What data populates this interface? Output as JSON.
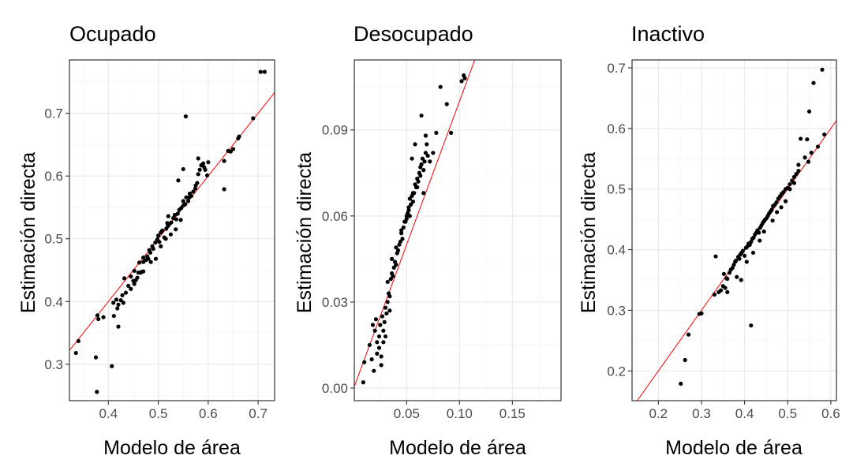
{
  "chart_data": [
    {
      "type": "scatter",
      "title": "Ocupado",
      "xlabel": "Modelo de área",
      "ylabel": "Estimación directa",
      "xlim": [
        0.322,
        0.733
      ],
      "ylim": [
        0.242,
        0.785
      ],
      "xticks": [
        0.4,
        0.5,
        0.6,
        0.7
      ],
      "xtick_labels": [
        "0.4",
        "0.5",
        "0.6",
        "0.7"
      ],
      "yticks": [
        0.3,
        0.4,
        0.5,
        0.6,
        0.7
      ],
      "ytick_labels": [
        "0.3",
        "0.4",
        "0.5",
        "0.6",
        "0.7"
      ],
      "grid": true,
      "reference_line": {
        "slope": 1,
        "intercept": 0,
        "color": "#ff0000"
      },
      "x": [
        0.34,
        0.335,
        0.378,
        0.375,
        0.377,
        0.38,
        0.39,
        0.407,
        0.41,
        0.416,
        0.418,
        0.42,
        0.411,
        0.42,
        0.425,
        0.43,
        0.428,
        0.44,
        0.432,
        0.445,
        0.45,
        0.452,
        0.458,
        0.452,
        0.46,
        0.466,
        0.462,
        0.47,
        0.475,
        0.47,
        0.478,
        0.48,
        0.484,
        0.482,
        0.49,
        0.488,
        0.494,
        0.498,
        0.502,
        0.5,
        0.505,
        0.508,
        0.512,
        0.516,
        0.519,
        0.518,
        0.522,
        0.526,
        0.53,
        0.533,
        0.536,
        0.539,
        0.542,
        0.546,
        0.55,
        0.55,
        0.554,
        0.556,
        0.56,
        0.562,
        0.563,
        0.566,
        0.57,
        0.574,
        0.575,
        0.578,
        0.58,
        0.583,
        0.586,
        0.59,
        0.592,
        0.594,
        0.598,
        0.6,
        0.555,
        0.58,
        0.632,
        0.64,
        0.645,
        0.65,
        0.66,
        0.662,
        0.69,
        0.705,
        0.713,
        0.632,
        0.55,
        0.54,
        0.52,
        0.465,
        0.47,
        0.485,
        0.495,
        0.505,
        0.515,
        0.525,
        0.535,
        0.545,
        0.455,
        0.445,
        0.435
      ],
      "y": [
        0.337,
        0.318,
        0.378,
        0.311,
        0.256,
        0.372,
        0.375,
        0.297,
        0.398,
        0.403,
        0.389,
        0.36,
        0.377,
        0.395,
        0.402,
        0.398,
        0.41,
        0.425,
        0.437,
        0.44,
        0.433,
        0.428,
        0.438,
        0.449,
        0.446,
        0.447,
        0.462,
        0.463,
        0.466,
        0.47,
        0.472,
        0.468,
        0.478,
        0.482,
        0.484,
        0.488,
        0.494,
        0.499,
        0.495,
        0.505,
        0.51,
        0.513,
        0.502,
        0.516,
        0.52,
        0.525,
        0.523,
        0.526,
        0.533,
        0.538,
        0.531,
        0.54,
        0.546,
        0.549,
        0.553,
        0.56,
        0.555,
        0.566,
        0.56,
        0.566,
        0.572,
        0.568,
        0.575,
        0.58,
        0.585,
        0.589,
        0.603,
        0.61,
        0.617,
        0.62,
        0.614,
        0.61,
        0.601,
        0.622,
        0.695,
        0.628,
        0.579,
        0.64,
        0.639,
        0.643,
        0.66,
        0.663,
        0.692,
        0.766,
        0.766,
        0.624,
        0.611,
        0.593,
        0.536,
        0.446,
        0.448,
        0.463,
        0.468,
        0.488,
        0.5,
        0.507,
        0.515,
        0.53,
        0.434,
        0.42,
        0.414
      ]
    },
    {
      "type": "scatter",
      "title": "Desocupado",
      "xlabel": "Modelo de área",
      "ylabel": "Estimación directa",
      "xlim": [
        0.0005,
        0.196
      ],
      "ylim": [
        -0.0044,
        0.1144
      ],
      "xticks": [
        0.05,
        0.1,
        0.15
      ],
      "xtick_labels": [
        "0.05",
        "0.10",
        "0.15"
      ],
      "yticks": [
        0.0,
        0.03,
        0.06,
        0.09
      ],
      "ytick_labels": [
        "0.00",
        "0.03",
        "0.06",
        "0.09"
      ],
      "grid": true,
      "reference_line": {
        "slope": 1,
        "intercept": 0,
        "color": "#ff0000"
      },
      "x": [
        0.009,
        0.01,
        0.015,
        0.017,
        0.019,
        0.021,
        0.022,
        0.024,
        0.025,
        0.027,
        0.026,
        0.028,
        0.029,
        0.03,
        0.031,
        0.032,
        0.033,
        0.034,
        0.035,
        0.034,
        0.036,
        0.037,
        0.038,
        0.039,
        0.04,
        0.041,
        0.042,
        0.043,
        0.044,
        0.045,
        0.046,
        0.047,
        0.048,
        0.049,
        0.05,
        0.051,
        0.052,
        0.053,
        0.054,
        0.055,
        0.056,
        0.057,
        0.058,
        0.059,
        0.06,
        0.061,
        0.062,
        0.063,
        0.064,
        0.065,
        0.066,
        0.067,
        0.068,
        0.07,
        0.072,
        0.075,
        0.078,
        0.082,
        0.088,
        0.092,
        0.102,
        0.104,
        0.105,
        0.068,
        0.064,
        0.058,
        0.055,
        0.03,
        0.028,
        0.026,
        0.024,
        0.022,
        0.02,
        0.018,
        0.032,
        0.036,
        0.04,
        0.045,
        0.05,
        0.053,
        0.056,
        0.06,
        0.063,
        0.066,
        0.069,
        0.052
      ],
      "y": [
        0.002,
        0.009,
        0.015,
        0.01,
        0.006,
        0.024,
        0.016,
        0.014,
        0.022,
        0.025,
        0.008,
        0.02,
        0.023,
        0.028,
        0.026,
        0.03,
        0.033,
        0.032,
        0.038,
        0.027,
        0.04,
        0.039,
        0.042,
        0.044,
        0.043,
        0.047,
        0.048,
        0.05,
        0.051,
        0.054,
        0.052,
        0.056,
        0.058,
        0.058,
        0.059,
        0.061,
        0.063,
        0.06,
        0.064,
        0.067,
        0.065,
        0.068,
        0.071,
        0.07,
        0.073,
        0.072,
        0.075,
        0.077,
        0.078,
        0.08,
        0.076,
        0.079,
        0.082,
        0.081,
        0.079,
        0.082,
        0.089,
        0.105,
        0.099,
        0.089,
        0.107,
        0.109,
        0.108,
        0.088,
        0.095,
        0.085,
        0.08,
        0.018,
        0.016,
        0.011,
        0.018,
        0.012,
        0.02,
        0.022,
        0.037,
        0.045,
        0.049,
        0.055,
        0.06,
        0.066,
        0.068,
        0.07,
        0.074,
        0.068,
        0.085,
        0.062
      ]
    },
    {
      "type": "scatter",
      "title": "Inactivo",
      "xlabel": "Modelo de área",
      "ylabel": "Estimación directa",
      "xlim": [
        0.139,
        0.613
      ],
      "ylim": [
        0.151,
        0.713
      ],
      "xticks": [
        0.2,
        0.3,
        0.4,
        0.5,
        0.6
      ],
      "xtick_labels": [
        "0.2",
        "0.3",
        "0.4",
        "0.5",
        "0.6"
      ],
      "yticks": [
        0.2,
        0.3,
        0.4,
        0.5,
        0.6,
        0.7
      ],
      "ytick_labels": [
        "0.2",
        "0.3",
        "0.4",
        "0.5",
        "0.6",
        "0.7"
      ],
      "grid": true,
      "reference_line": {
        "slope": 1,
        "intercept": 0,
        "color": "#ff0000"
      },
      "x": [
        0.252,
        0.262,
        0.27,
        0.295,
        0.3,
        0.33,
        0.333,
        0.34,
        0.345,
        0.35,
        0.352,
        0.355,
        0.358,
        0.36,
        0.365,
        0.368,
        0.372,
        0.375,
        0.378,
        0.38,
        0.385,
        0.388,
        0.39,
        0.393,
        0.396,
        0.4,
        0.403,
        0.406,
        0.409,
        0.412,
        0.415,
        0.418,
        0.421,
        0.424,
        0.427,
        0.43,
        0.433,
        0.436,
        0.439,
        0.442,
        0.445,
        0.448,
        0.451,
        0.454,
        0.457,
        0.46,
        0.463,
        0.466,
        0.47,
        0.474,
        0.478,
        0.482,
        0.486,
        0.49,
        0.495,
        0.5,
        0.505,
        0.51,
        0.515,
        0.52,
        0.525,
        0.53,
        0.54,
        0.55,
        0.555,
        0.56,
        0.57,
        0.58,
        0.585,
        0.415,
        0.382,
        0.392,
        0.36,
        0.405,
        0.42,
        0.435,
        0.445,
        0.465,
        0.475,
        0.485,
        0.495,
        0.505,
        0.515,
        0.525,
        0.545,
        0.548
      ],
      "y": [
        0.179,
        0.218,
        0.26,
        0.294,
        0.295,
        0.326,
        0.389,
        0.33,
        0.333,
        0.34,
        0.36,
        0.337,
        0.353,
        0.352,
        0.362,
        0.367,
        0.37,
        0.375,
        0.38,
        0.382,
        0.388,
        0.385,
        0.392,
        0.395,
        0.398,
        0.39,
        0.403,
        0.405,
        0.41,
        0.408,
        0.413,
        0.418,
        0.42,
        0.425,
        0.428,
        0.432,
        0.428,
        0.436,
        0.44,
        0.444,
        0.447,
        0.45,
        0.452,
        0.456,
        0.46,
        0.463,
        0.466,
        0.472,
        0.474,
        0.478,
        0.484,
        0.488,
        0.492,
        0.495,
        0.5,
        0.502,
        0.508,
        0.514,
        0.52,
        0.525,
        0.53,
        0.583,
        0.552,
        0.628,
        0.56,
        0.675,
        0.57,
        0.697,
        0.59,
        0.275,
        0.355,
        0.35,
        0.33,
        0.38,
        0.395,
        0.415,
        0.43,
        0.448,
        0.462,
        0.47,
        0.48,
        0.5,
        0.51,
        0.54,
        0.582,
        0.545
      ]
    }
  ]
}
